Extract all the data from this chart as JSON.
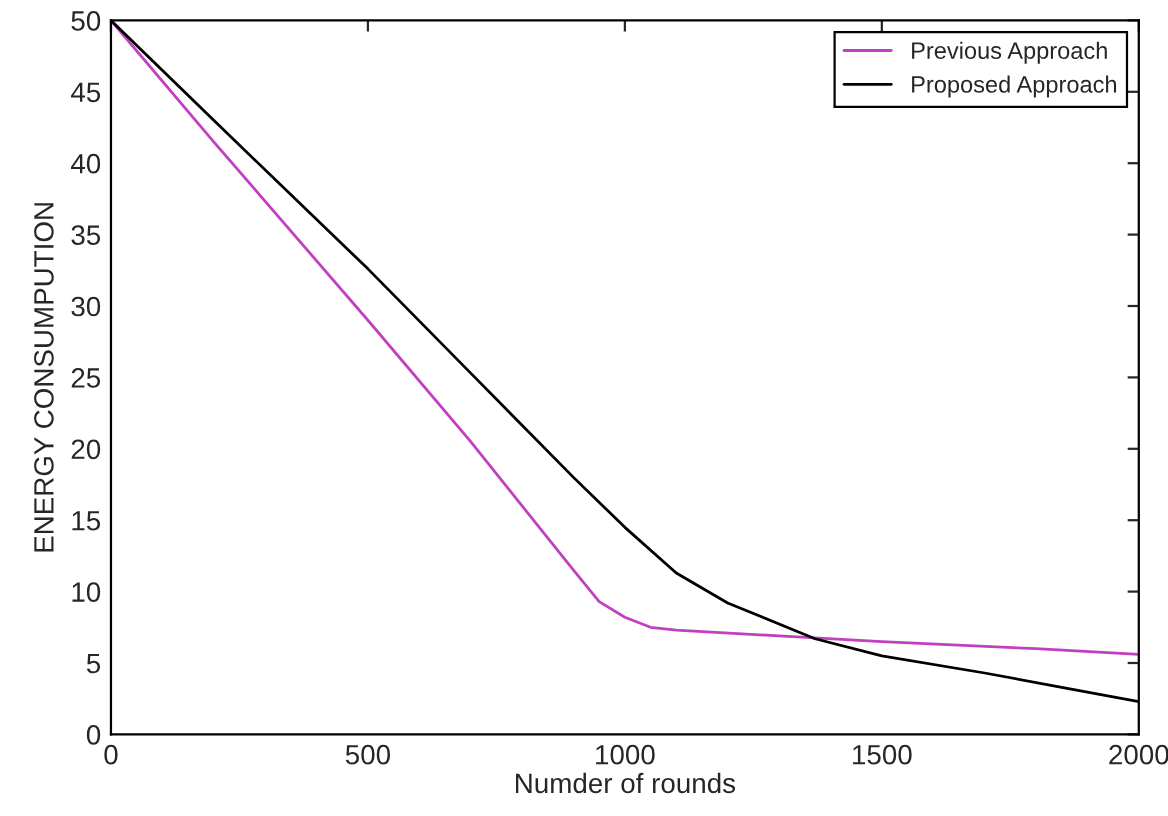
{
  "chart_data": {
    "type": "line",
    "xlabel": "Numder of rounds",
    "ylabel": "ENERGY CONSUMPUTION",
    "xlim": [
      0,
      2000
    ],
    "ylim": [
      0,
      50
    ],
    "xticks": [
      0,
      500,
      1000,
      1500,
      2000
    ],
    "yticks": [
      0,
      5,
      10,
      15,
      20,
      25,
      30,
      35,
      40,
      45,
      50
    ],
    "grid": false,
    "legend": "top right",
    "marker": "none",
    "line_style": "solid",
    "series": [
      {
        "name": "Previous Approach",
        "color": "#c040c0",
        "x": [
          0,
          200,
          500,
          700,
          900,
          950,
          1000,
          1050,
          1100,
          1300,
          1500,
          1800,
          2000
        ],
        "values": [
          50,
          41.5,
          29,
          20.5,
          11.5,
          9.3,
          8.2,
          7.5,
          7.3,
          6.9,
          6.5,
          6.0,
          5.6
        ]
      },
      {
        "name": "Proposed Approach",
        "color": "#000000",
        "x": [
          0,
          200,
          500,
          700,
          900,
          1000,
          1100,
          1200,
          1370,
          1500,
          1700,
          1850,
          2000
        ],
        "values": [
          50,
          43,
          32.6,
          25.3,
          18,
          14.5,
          11.3,
          9.2,
          6.7,
          5.5,
          4.3,
          3.3,
          2.3
        ]
      }
    ]
  }
}
